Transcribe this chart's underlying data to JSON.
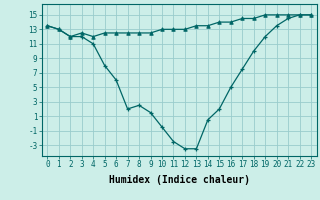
{
  "xlabel": "Humidex (Indice chaleur)",
  "bg_color": "#cceee8",
  "grid_color": "#99cccc",
  "line_color": "#006666",
  "xlim": [
    -0.5,
    23.5
  ],
  "ylim": [
    -4.5,
    16.5
  ],
  "yticks": [
    -3,
    -1,
    1,
    3,
    5,
    7,
    9,
    11,
    13,
    15
  ],
  "xticks": [
    0,
    1,
    2,
    3,
    4,
    5,
    6,
    7,
    8,
    9,
    10,
    11,
    12,
    13,
    14,
    15,
    16,
    17,
    18,
    19,
    20,
    21,
    22,
    23
  ],
  "series1_x": [
    0,
    1,
    2,
    3,
    4,
    5,
    6,
    7,
    8,
    9,
    10,
    11,
    12,
    13,
    14,
    15,
    16,
    17,
    18,
    19,
    20,
    21,
    22,
    23
  ],
  "series1_y": [
    13.5,
    13.0,
    12.0,
    12.5,
    12.0,
    12.5,
    12.5,
    12.5,
    12.5,
    12.5,
    13.0,
    13.0,
    13.0,
    13.5,
    13.5,
    14.0,
    14.0,
    14.5,
    14.5,
    15.0,
    15.0,
    15.0,
    15.0,
    15.0
  ],
  "series2_x": [
    0,
    1,
    2,
    3,
    4,
    5,
    6,
    7,
    8,
    9,
    10,
    11,
    12,
    13,
    14,
    15,
    16,
    17,
    18,
    19,
    20,
    21,
    22,
    23
  ],
  "series2_y": [
    13.5,
    13.0,
    12.0,
    12.0,
    11.0,
    8.0,
    6.0,
    2.0,
    2.5,
    1.5,
    -0.5,
    -2.5,
    -3.5,
    -3.5,
    0.5,
    2.0,
    5.0,
    7.5,
    10.0,
    12.0,
    13.5,
    14.5,
    15.0,
    15.0
  ],
  "tick_fontsize": 5.5,
  "xlabel_fontsize": 7
}
